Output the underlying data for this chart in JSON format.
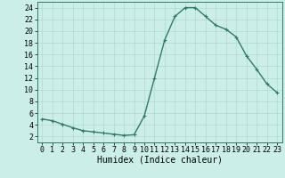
{
  "x": [
    0,
    1,
    2,
    3,
    4,
    5,
    6,
    7,
    8,
    9,
    10,
    11,
    12,
    13,
    14,
    15,
    16,
    17,
    18,
    19,
    20,
    21,
    22,
    23
  ],
  "y": [
    5.0,
    4.7,
    4.1,
    3.5,
    3.0,
    2.8,
    2.6,
    2.4,
    2.2,
    2.3,
    5.5,
    12.0,
    18.5,
    22.5,
    24.0,
    24.0,
    22.5,
    21.0,
    20.3,
    19.0,
    15.8,
    13.5,
    11.0,
    9.5
  ],
  "line_color": "#2d7a6e",
  "marker": "+",
  "marker_size": 3,
  "background_color": "#cceee8",
  "grid_color": "#b0d8d0",
  "xlabel": "Humidex (Indice chaleur)",
  "xlim": [
    -0.5,
    23.5
  ],
  "ylim": [
    1,
    25
  ],
  "xticks": [
    0,
    1,
    2,
    3,
    4,
    5,
    6,
    7,
    8,
    9,
    10,
    11,
    12,
    13,
    14,
    15,
    16,
    17,
    18,
    19,
    20,
    21,
    22,
    23
  ],
  "yticks": [
    2,
    4,
    6,
    8,
    10,
    12,
    14,
    16,
    18,
    20,
    22,
    24
  ],
  "xlabel_fontsize": 7,
  "tick_fontsize": 6,
  "line_width": 1.0
}
